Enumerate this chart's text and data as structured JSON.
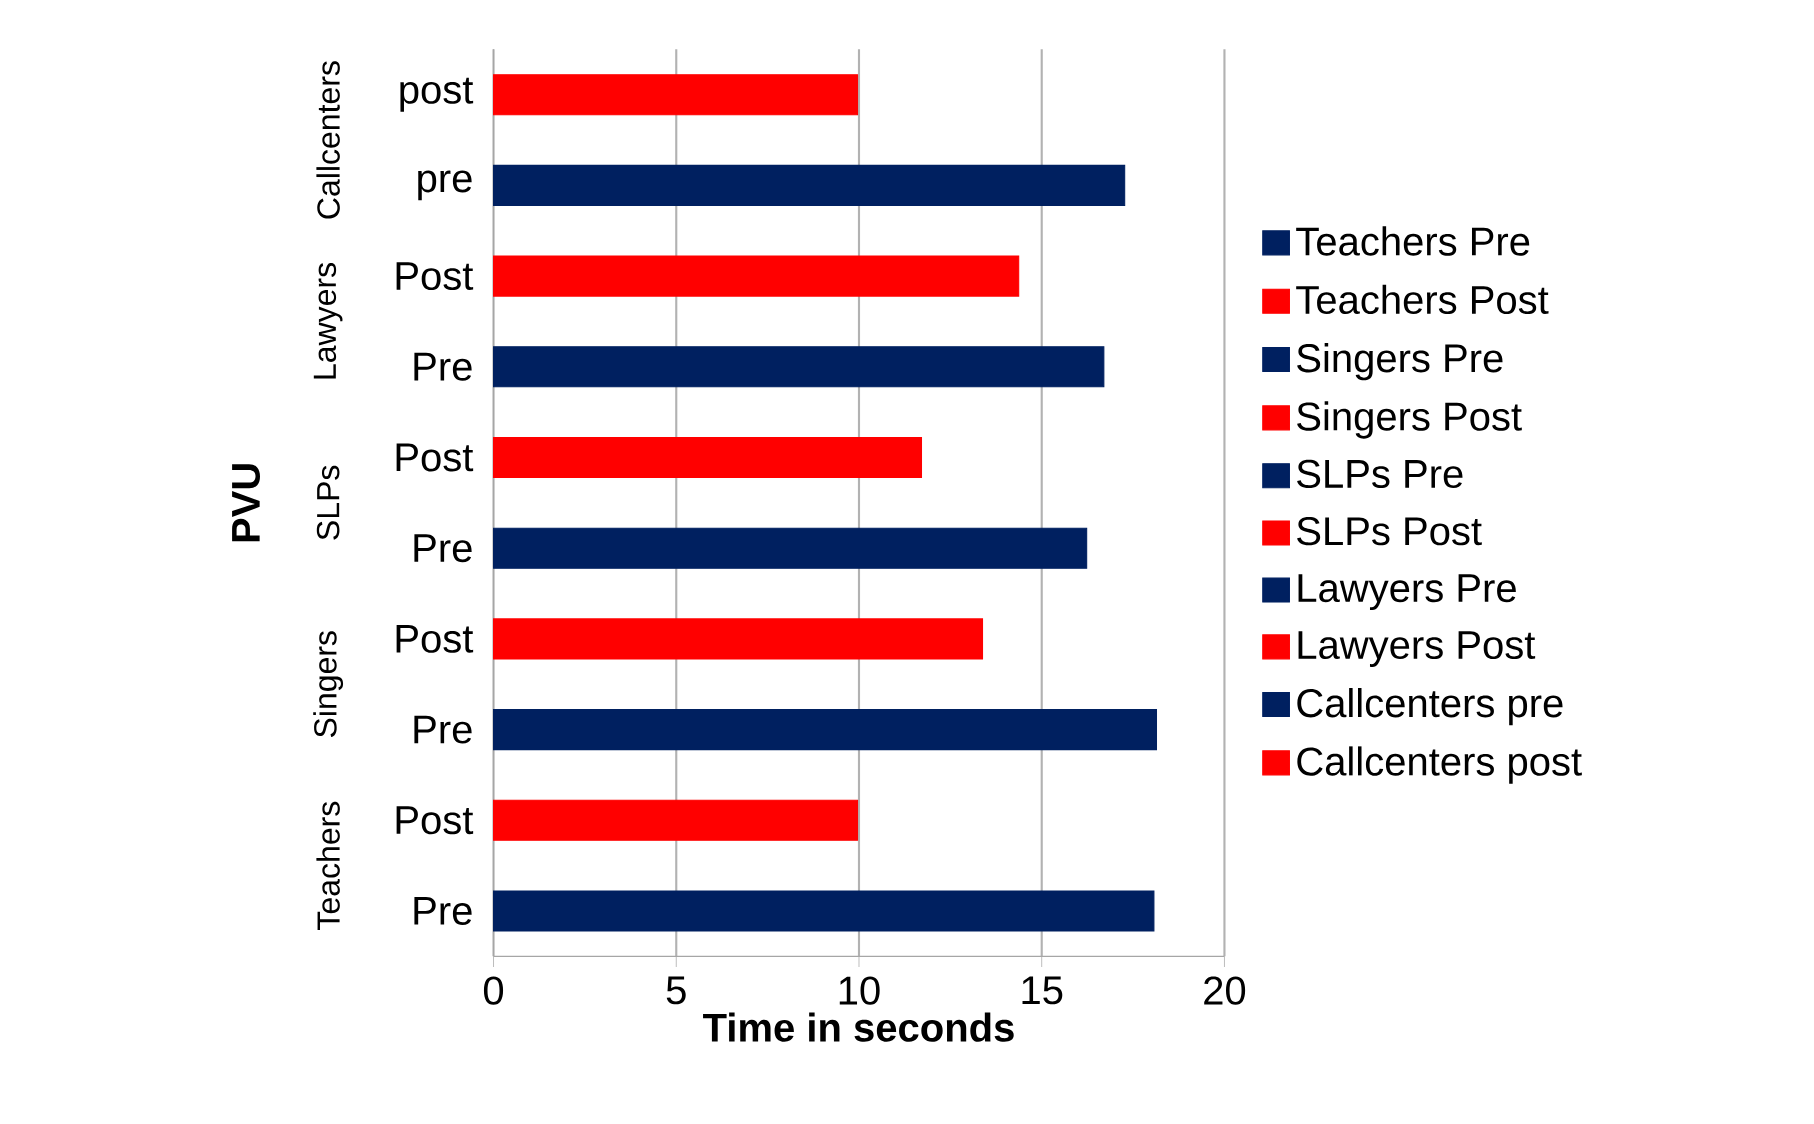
{
  "chart_data": {
    "type": "bar",
    "orientation": "horizontal",
    "xlabel": "Time in seconds",
    "ylabel": "PVU",
    "categories": [
      "post",
      "pre",
      "Post",
      "Pre",
      "Post",
      "Pre",
      "Post",
      "Pre",
      "Post",
      "Pre"
    ],
    "annotations": [
      "Callcenters",
      "Lawyers",
      "SLPs",
      "Singers",
      "Teachers"
    ],
    "xlim": [
      0,
      20
    ],
    "xticks": [
      0,
      5,
      10,
      15,
      20
    ],
    "grid": "x",
    "legend": "right",
    "series": [
      {
        "name": "Teachers Pre",
        "color": "#002060",
        "values": [
          null,
          null,
          null,
          null,
          null,
          null,
          null,
          null,
          null,
          18.07
        ]
      },
      {
        "name": "Teachers Post",
        "color": "#ff0000",
        "values": [
          null,
          null,
          null,
          null,
          null,
          null,
          null,
          null,
          9.96,
          null
        ]
      },
      {
        "name": "Singers Pre",
        "color": "#002060",
        "values": [
          null,
          null,
          null,
          null,
          null,
          null,
          null,
          18.14,
          null,
          null
        ]
      },
      {
        "name": "Singers Post",
        "color": "#ff0000",
        "values": [
          null,
          null,
          null,
          null,
          null,
          null,
          13.38,
          null,
          null,
          null
        ]
      },
      {
        "name": "SLPs Pre",
        "color": "#002060",
        "values": [
          null,
          null,
          null,
          null,
          null,
          16.23,
          null,
          null,
          null,
          null
        ]
      },
      {
        "name": "SLPs Post",
        "color": "#ff0000",
        "values": [
          null,
          null,
          null,
          null,
          11.71,
          null,
          null,
          null,
          null,
          null
        ]
      },
      {
        "name": "Lawyers Pre",
        "color": "#002060",
        "values": [
          null,
          null,
          null,
          16.7,
          null,
          null,
          null,
          null,
          null,
          null
        ]
      },
      {
        "name": "Lawyers Post",
        "color": "#ff0000",
        "values": [
          null,
          null,
          14.37,
          null,
          null,
          null,
          null,
          null,
          null,
          null
        ]
      },
      {
        "name": "Callcenters pre",
        "color": "#002060",
        "values": [
          null,
          17.27,
          null,
          null,
          null,
          null,
          null,
          null,
          null,
          null
        ]
      },
      {
        "name": "Callcenters post",
        "color": "#ff0000",
        "values": [
          9.96,
          null,
          null,
          null,
          null,
          null,
          null,
          null,
          null,
          null
        ]
      }
    ]
  }
}
